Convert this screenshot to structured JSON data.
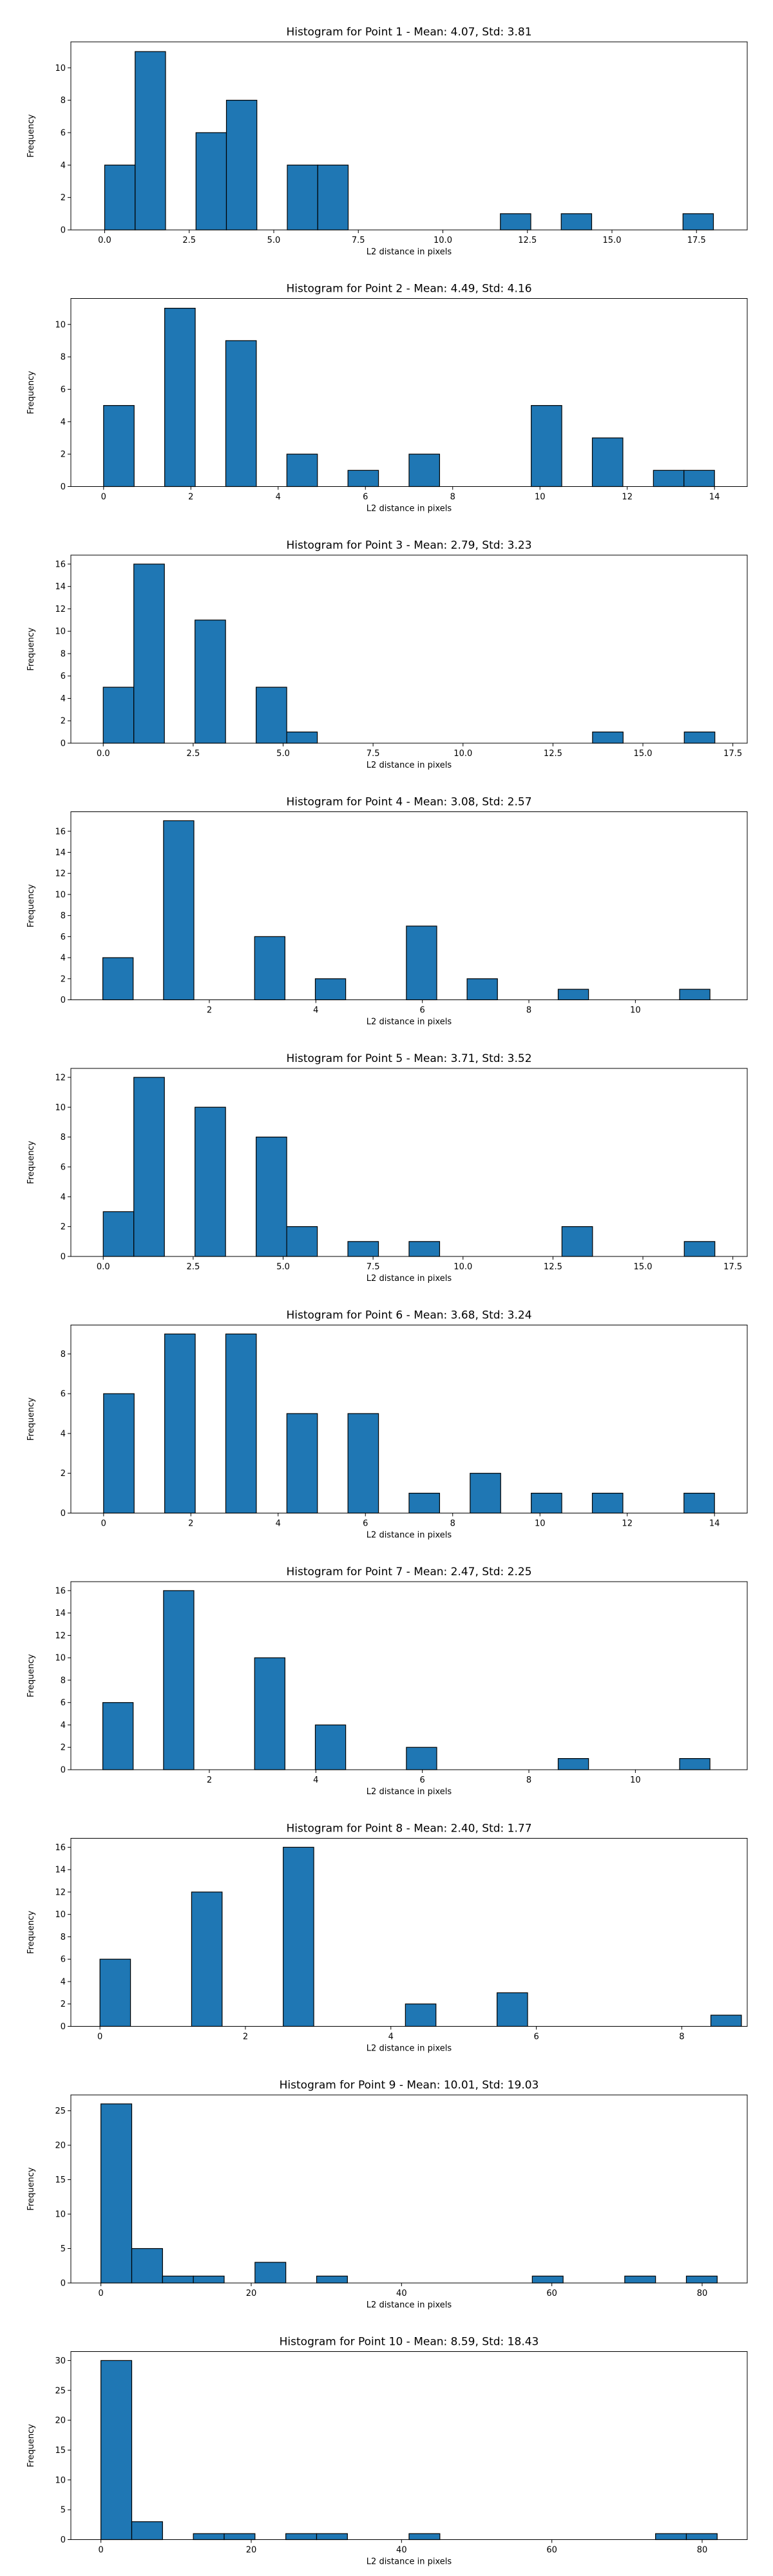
{
  "chart_data": [
    {
      "type": "bar",
      "title": "Histogram for Point 1 - Mean: 4.07, Std: 3.81",
      "xlabel": "L2 distance in pixels",
      "ylabel": "Frequency",
      "xlim": [
        -1.0,
        19.0
      ],
      "ylim": [
        0,
        11.6
      ],
      "xticks": [
        0,
        2.5,
        5,
        7.5,
        10,
        12.5,
        15,
        17.5
      ],
      "xtick_labels": [
        "0.0",
        "2.5",
        "5.0",
        "7.5",
        "10.0",
        "12.5",
        "15.0",
        "17.5"
      ],
      "yticks": [
        0,
        2,
        4,
        6,
        8,
        10
      ],
      "bar_width": 0.9,
      "bars": [
        {
          "x": 0.0,
          "height": 4
        },
        {
          "x": 0.9,
          "height": 11
        },
        {
          "x": 2.7,
          "height": 6
        },
        {
          "x": 3.6,
          "height": 8
        },
        {
          "x": 5.4,
          "height": 4
        },
        {
          "x": 6.3,
          "height": 4
        },
        {
          "x": 11.7,
          "height": 1
        },
        {
          "x": 13.5,
          "height": 1
        },
        {
          "x": 17.1,
          "height": 1
        }
      ]
    },
    {
      "type": "bar",
      "title": "Histogram for Point 2 - Mean: 4.49, Std: 4.16",
      "xlabel": "L2 distance in pixels",
      "ylabel": "Frequency",
      "xlim": [
        -0.75,
        14.75
      ],
      "ylim": [
        0,
        11.6
      ],
      "xticks": [
        0,
        2,
        4,
        6,
        8,
        10,
        12,
        14
      ],
      "xtick_labels": [
        "0",
        "2",
        "4",
        "6",
        "8",
        "10",
        "12",
        "14"
      ],
      "yticks": [
        0,
        2,
        4,
        6,
        8,
        10
      ],
      "bar_width": 0.7,
      "bars": [
        {
          "x": 0.0,
          "height": 5
        },
        {
          "x": 1.4,
          "height": 11
        },
        {
          "x": 2.8,
          "height": 9
        },
        {
          "x": 4.2,
          "height": 2
        },
        {
          "x": 5.6,
          "height": 1
        },
        {
          "x": 7.0,
          "height": 2
        },
        {
          "x": 9.8,
          "height": 5
        },
        {
          "x": 11.2,
          "height": 3
        },
        {
          "x": 12.6,
          "height": 1
        },
        {
          "x": 13.3,
          "height": 1
        }
      ]
    },
    {
      "type": "bar",
      "title": "Histogram for Point 3 - Mean: 2.79, Std: 3.23",
      "xlabel": "L2 distance in pixels",
      "ylabel": "Frequency",
      "xlim": [
        -0.9,
        17.9
      ],
      "ylim": [
        0,
        16.8
      ],
      "xticks": [
        0,
        2.5,
        5,
        7.5,
        10,
        12.5,
        15,
        17.5
      ],
      "xtick_labels": [
        "0.0",
        "2.5",
        "5.0",
        "7.5",
        "10.0",
        "12.5",
        "15.0",
        "17.5"
      ],
      "yticks": [
        0,
        2,
        4,
        6,
        8,
        10,
        12,
        14,
        16
      ],
      "bar_width": 0.85,
      "bars": [
        {
          "x": 0.0,
          "height": 5
        },
        {
          "x": 0.85,
          "height": 16
        },
        {
          "x": 2.55,
          "height": 11
        },
        {
          "x": 4.25,
          "height": 5
        },
        {
          "x": 5.1,
          "height": 1
        },
        {
          "x": 13.6,
          "height": 1
        },
        {
          "x": 16.15,
          "height": 1
        }
      ]
    },
    {
      "type": "bar",
      "title": "Histogram for Point 4 - Mean: 3.08, Std: 2.57",
      "xlabel": "L2 distance in pixels",
      "ylabel": "Frequency",
      "xlim": [
        -0.6,
        12.1
      ],
      "ylim": [
        0,
        17.85
      ],
      "xticks": [
        2,
        4,
        6,
        8,
        10
      ],
      "xtick_labels": [
        "2",
        "4",
        "6",
        "8",
        "10"
      ],
      "yticks": [
        0,
        2,
        4,
        6,
        8,
        10,
        12,
        14,
        16
      ],
      "bar_width": 0.57,
      "bars": [
        {
          "x": 0.0,
          "height": 4
        },
        {
          "x": 1.14,
          "height": 17
        },
        {
          "x": 2.85,
          "height": 6
        },
        {
          "x": 3.99,
          "height": 2
        },
        {
          "x": 5.7,
          "height": 7
        },
        {
          "x": 6.84,
          "height": 2
        },
        {
          "x": 8.55,
          "height": 1
        },
        {
          "x": 10.83,
          "height": 1
        }
      ]
    },
    {
      "type": "bar",
      "title": "Histogram for Point 5 - Mean: 3.71, Std: 3.52",
      "xlabel": "L2 distance in pixels",
      "ylabel": "Frequency",
      "xlim": [
        -0.9,
        17.9
      ],
      "ylim": [
        0,
        12.6
      ],
      "xticks": [
        0,
        2.5,
        5,
        7.5,
        10,
        12.5,
        15,
        17.5
      ],
      "xtick_labels": [
        "0.0",
        "2.5",
        "5.0",
        "7.5",
        "10.0",
        "12.5",
        "15.0",
        "17.5"
      ],
      "yticks": [
        0,
        2,
        4,
        6,
        8,
        10,
        12
      ],
      "bar_width": 0.85,
      "bars": [
        {
          "x": 0.0,
          "height": 3
        },
        {
          "x": 0.85,
          "height": 12
        },
        {
          "x": 2.55,
          "height": 10
        },
        {
          "x": 4.25,
          "height": 8
        },
        {
          "x": 5.1,
          "height": 2
        },
        {
          "x": 6.8,
          "height": 1
        },
        {
          "x": 8.5,
          "height": 1
        },
        {
          "x": 12.75,
          "height": 2
        },
        {
          "x": 16.15,
          "height": 1
        }
      ]
    },
    {
      "type": "bar",
      "title": "Histogram for Point 6 - Mean: 3.68, Std: 3.24",
      "xlabel": "L2 distance in pixels",
      "ylabel": "Frequency",
      "xlim": [
        -0.75,
        14.75
      ],
      "ylim": [
        0,
        9.45
      ],
      "xticks": [
        0,
        2,
        4,
        6,
        8,
        10,
        12,
        14
      ],
      "xtick_labels": [
        "0",
        "2",
        "4",
        "6",
        "8",
        "10",
        "12",
        "14"
      ],
      "yticks": [
        0,
        2,
        4,
        6,
        8
      ],
      "bar_width": 0.7,
      "bars": [
        {
          "x": 0.0,
          "height": 6
        },
        {
          "x": 1.4,
          "height": 9
        },
        {
          "x": 2.8,
          "height": 9
        },
        {
          "x": 4.2,
          "height": 5
        },
        {
          "x": 5.6,
          "height": 5
        },
        {
          "x": 7.0,
          "height": 1
        },
        {
          "x": 8.4,
          "height": 2
        },
        {
          "x": 9.8,
          "height": 1
        },
        {
          "x": 11.2,
          "height": 1
        },
        {
          "x": 13.3,
          "height": 1
        }
      ]
    },
    {
      "type": "bar",
      "title": "Histogram for Point 7 - Mean: 2.47, Std: 2.25",
      "xlabel": "L2 distance in pixels",
      "ylabel": "Frequency",
      "xlim": [
        -0.6,
        12.1
      ],
      "ylim": [
        0,
        16.8
      ],
      "xticks": [
        2,
        4,
        6,
        8,
        10
      ],
      "xtick_labels": [
        "2",
        "4",
        "6",
        "8",
        "10"
      ],
      "yticks": [
        0,
        2,
        4,
        6,
        8,
        10,
        12,
        14,
        16
      ],
      "bar_width": 0.57,
      "bars": [
        {
          "x": 0.0,
          "height": 6
        },
        {
          "x": 1.14,
          "height": 16
        },
        {
          "x": 2.85,
          "height": 10
        },
        {
          "x": 3.99,
          "height": 4
        },
        {
          "x": 5.7,
          "height": 2
        },
        {
          "x": 8.55,
          "height": 1
        },
        {
          "x": 10.83,
          "height": 1
        }
      ]
    },
    {
      "type": "bar",
      "title": "Histogram for Point 8 - Mean: 2.40, Std: 1.77",
      "xlabel": "L2 distance in pixels",
      "ylabel": "Frequency",
      "xlim": [
        -0.4,
        8.9
      ],
      "ylim": [
        0,
        16.8
      ],
      "xticks": [
        0,
        2,
        4,
        6,
        8
      ],
      "xtick_labels": [
        "0",
        "2",
        "4",
        "6",
        "8"
      ],
      "yticks": [
        0,
        2,
        4,
        6,
        8,
        10,
        12,
        14,
        16
      ],
      "bar_width": 0.42,
      "bars": [
        {
          "x": 0.0,
          "height": 6
        },
        {
          "x": 1.26,
          "height": 12
        },
        {
          "x": 2.52,
          "height": 16
        },
        {
          "x": 4.2,
          "height": 2
        },
        {
          "x": 5.46,
          "height": 3
        },
        {
          "x": 8.4,
          "height": 1
        }
      ]
    },
    {
      "type": "bar",
      "title": "Histogram for Point 9 - Mean: 10.01, Std: 19.03",
      "xlabel": "L2 distance in pixels",
      "ylabel": "Frequency",
      "xlim": [
        -4.0,
        86.0
      ],
      "ylim": [
        0,
        27.3
      ],
      "xticks": [
        0,
        20,
        40,
        60,
        80
      ],
      "xtick_labels": [
        "0",
        "20",
        "40",
        "60",
        "80"
      ],
      "yticks": [
        0,
        5,
        10,
        15,
        20,
        25
      ],
      "bar_width": 4.1,
      "bars": [
        {
          "x": 0.0,
          "height": 26
        },
        {
          "x": 4.1,
          "height": 5
        },
        {
          "x": 8.2,
          "height": 1
        },
        {
          "x": 12.3,
          "height": 1
        },
        {
          "x": 20.5,
          "height": 3
        },
        {
          "x": 28.7,
          "height": 1
        },
        {
          "x": 57.4,
          "height": 1
        },
        {
          "x": 69.7,
          "height": 1
        },
        {
          "x": 77.9,
          "height": 1
        }
      ]
    },
    {
      "type": "bar",
      "title": "Histogram for Point 10 - Mean: 8.59, Std: 18.43",
      "xlabel": "L2 distance in pixels",
      "ylabel": "Frequency",
      "xlim": [
        -4.0,
        86.0
      ],
      "ylim": [
        0,
        31.5
      ],
      "xticks": [
        0,
        20,
        40,
        60,
        80
      ],
      "xtick_labels": [
        "0",
        "20",
        "40",
        "60",
        "80"
      ],
      "yticks": [
        0,
        5,
        10,
        15,
        20,
        25,
        30
      ],
      "bar_width": 4.1,
      "bars": [
        {
          "x": 0.0,
          "height": 30
        },
        {
          "x": 4.1,
          "height": 3
        },
        {
          "x": 12.3,
          "height": 1
        },
        {
          "x": 16.4,
          "height": 1
        },
        {
          "x": 24.6,
          "height": 1
        },
        {
          "x": 28.7,
          "height": 1
        },
        {
          "x": 41.0,
          "height": 1
        },
        {
          "x": 73.8,
          "height": 1
        },
        {
          "x": 77.9,
          "height": 1
        }
      ]
    }
  ],
  "style": {
    "bar_fill": "#1f77b4",
    "bar_edge": "#000000",
    "axis_color": "#000000",
    "background": "#ffffff"
  }
}
